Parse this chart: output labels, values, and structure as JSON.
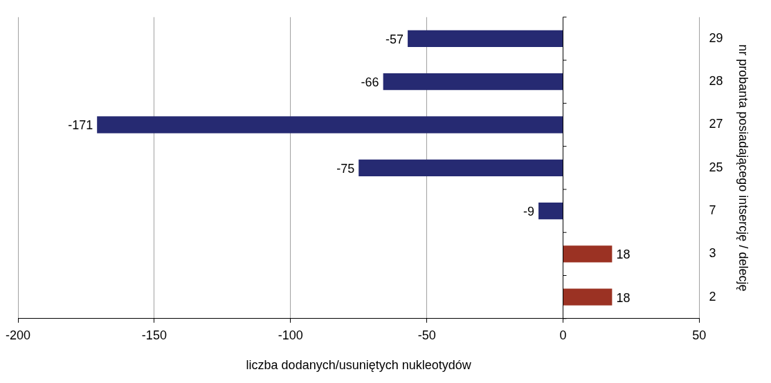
{
  "chart_data": {
    "type": "bar",
    "orientation": "horizontal",
    "categories": [
      "29",
      "28",
      "27",
      "25",
      "7",
      "3",
      "2"
    ],
    "values": [
      -57,
      -66,
      -171,
      -75,
      -9,
      18,
      18
    ],
    "colors": [
      "#262a72",
      "#262a72",
      "#262a72",
      "#262a72",
      "#262a72",
      "#9b3223",
      "#9b3223"
    ],
    "xlim": [
      -200,
      50
    ],
    "xticks": [
      -200,
      -150,
      -100,
      -50,
      0,
      50
    ],
    "xlabel": "liczba dodanych/usuniętych nukleotydów",
    "ylabel": "nr probanta posiadającego intsercję / delecję",
    "grid": "x",
    "data_labels": true,
    "legend": false
  }
}
